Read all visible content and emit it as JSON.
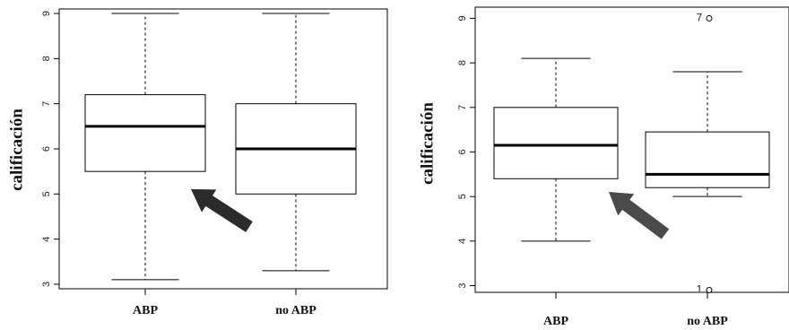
{
  "chart_data": [
    {
      "type": "boxplot",
      "ylabel": "calificación",
      "ylim": [
        2.9,
        9.1
      ],
      "yticks": [
        3,
        4,
        5,
        6,
        7,
        8,
        9
      ],
      "grid": false,
      "categories": [
        "ABP",
        "no ABP"
      ],
      "boxes": [
        {
          "category": "ABP",
          "whisker_low": 3.1,
          "q1": 5.5,
          "median": 6.5,
          "q3": 7.2,
          "whisker_high": 9,
          "outliers": []
        },
        {
          "category": "no ABP",
          "whisker_low": 3.3,
          "q1": 5.0,
          "median": 6.0,
          "q3": 7.0,
          "whisker_high": 9,
          "outliers": []
        }
      ],
      "arrow_color": "#2b2b2b"
    },
    {
      "type": "boxplot",
      "ylabel": "calificación",
      "ylim": [
        2.85,
        9.25
      ],
      "yticks": [
        3,
        4,
        5,
        6,
        7,
        8,
        9
      ],
      "grid": false,
      "categories": [
        "ABP",
        "no ABP"
      ],
      "boxes": [
        {
          "category": "ABP",
          "whisker_low": 4.0,
          "q1": 5.4,
          "median": 6.15,
          "q3": 7.0,
          "whisker_high": 8.1,
          "outliers": []
        },
        {
          "category": "no ABP",
          "whisker_low": 5.0,
          "q1": 5.2,
          "median": 5.5,
          "q3": 6.45,
          "whisker_high": 7.8,
          "outliers": [
            {
              "value": 9.0,
              "label": "7"
            },
            {
              "value": 2.9,
              "label": "1"
            }
          ]
        }
      ],
      "arrow_color": "#4a4a4a"
    }
  ]
}
